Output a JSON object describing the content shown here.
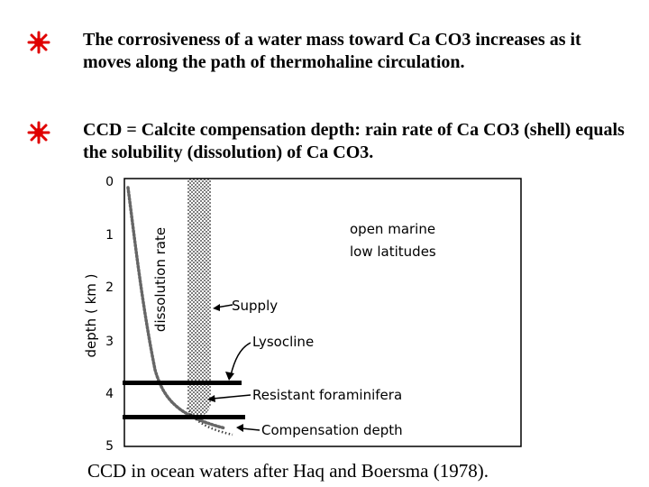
{
  "bullets": [
    {
      "icon": "red-star-icon",
      "text": "The corrosiveness of a water mass toward Ca CO3 increases as it moves along the path of thermohaline circulation."
    },
    {
      "icon": "red-star-icon",
      "text": "CCD = Calcite compensation depth: rain rate of Ca CO3 (shell) equals the solubility (dissolution) of Ca CO3."
    }
  ],
  "figure": {
    "y_axis_label": "depth ( km )",
    "y_ticks": [
      "0",
      "1",
      "2",
      "3",
      "4",
      "5"
    ],
    "curve_label": "dissolution rate",
    "region_label_line1": "open marine",
    "region_label_line2": "low latitudes",
    "annotations": {
      "supply": "Supply",
      "lysocline": "Lysocline",
      "resistant": "Resistant foraminifera",
      "compensation": "Compensation depth"
    },
    "accent_color": "#e00000"
  },
  "caption": "CCD in ocean waters after Haq and Boersma (1978)."
}
